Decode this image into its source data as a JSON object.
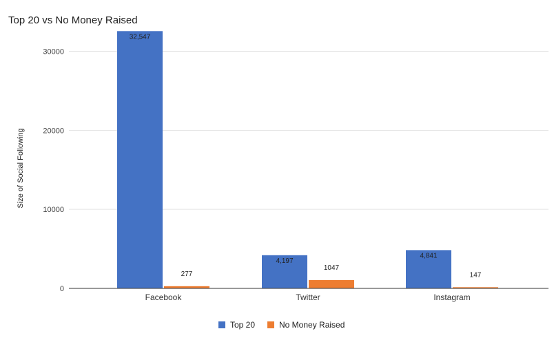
{
  "chart_data": {
    "type": "bar",
    "title": "Top 20 vs No Money Raised",
    "xlabel": "",
    "ylabel": "Size of Social Following",
    "categories": [
      "Facebook",
      "Twitter",
      "Instagram"
    ],
    "series": [
      {
        "name": "Top 20",
        "values": [
          32547,
          4197,
          4841
        ],
        "labels": [
          "32,547",
          "4,197",
          "4,841"
        ],
        "color": "#4472c4"
      },
      {
        "name": "No Money Raised",
        "values": [
          277,
          1047,
          147
        ],
        "labels": [
          "277",
          "1047",
          "147"
        ],
        "color": "#ed7d31"
      }
    ],
    "yticks": [
      0,
      10000,
      20000,
      30000
    ],
    "ylim": [
      0,
      33000
    ],
    "grid": true,
    "legend": "bottom"
  }
}
